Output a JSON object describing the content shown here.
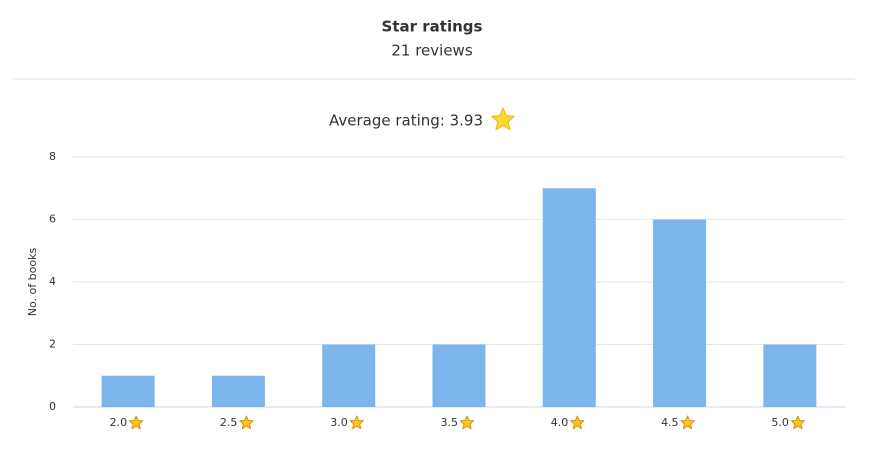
{
  "chart_data": {
    "type": "bar",
    "title": "Star ratings",
    "subtitle": "21 reviews",
    "annotation": "Average rating: 3.93",
    "y_label": "No. of books",
    "categories": [
      "2.0",
      "2.5",
      "3.0",
      "3.5",
      "4.0",
      "4.5",
      "5.0"
    ],
    "values": [
      1,
      1,
      2,
      2,
      7,
      6,
      2
    ],
    "color": "#7cb5ec",
    "ylim": [
      0,
      8
    ],
    "yticks": [
      0,
      2,
      4,
      6,
      8
    ],
    "grid": true
  }
}
